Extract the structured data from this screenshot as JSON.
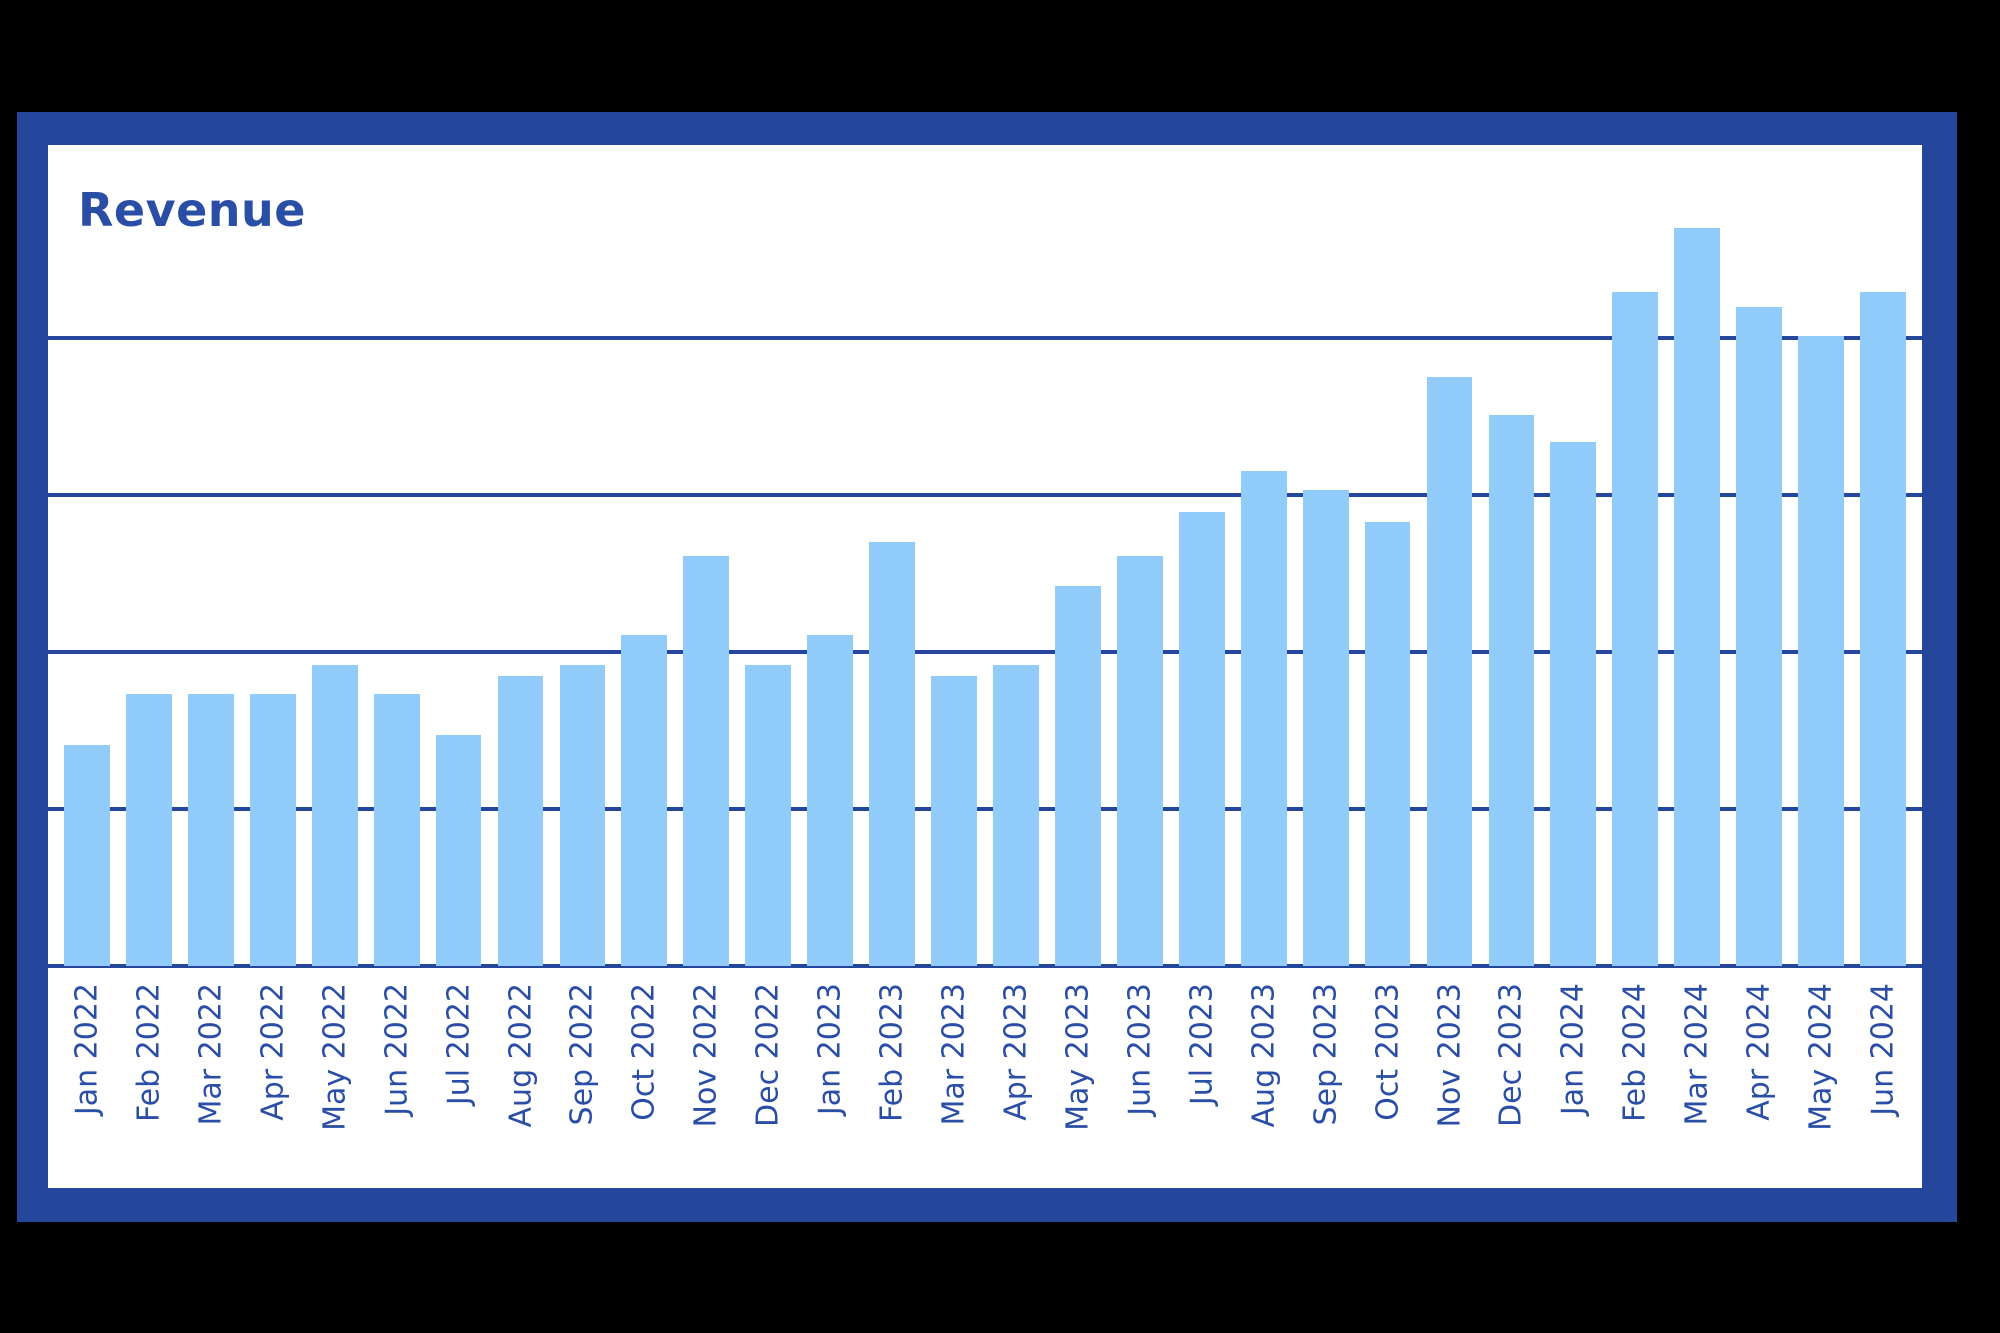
{
  "chart_data": {
    "type": "bar",
    "title": "Revenue",
    "xlabel": "",
    "ylabel": "",
    "y_tick_labels_visible": false,
    "grid": true,
    "gridline_count_above_baseline": 4,
    "ylim": [
      0,
      5
    ],
    "units_note": "relative units; each gridline step = 1",
    "colors": {
      "bar": "#90cbf9",
      "frame": "#24479b",
      "title": "#2a4ea6",
      "grid": "#24479b"
    },
    "categories": [
      "Jan 2022",
      "Feb 2022",
      "Mar 2022",
      "Apr 2022",
      "May 2022",
      "Jun 2022",
      "Jul 2022",
      "Aug 2022",
      "Sep 2022",
      "Oct 2022",
      "Nov 2022",
      "Dec 2022",
      "Jan 2023",
      "Feb 2023",
      "Mar 2023",
      "Apr 2023",
      "May 2023",
      "Jun 2023",
      "Jul 2023",
      "Aug 2023",
      "Sep 2023",
      "Oct 2023",
      "Nov 2023",
      "Dec 2023",
      "Jan 2024",
      "Feb 2024",
      "Mar 2024",
      "Apr 2024",
      "May 2024",
      "Jun 2024"
    ],
    "values": [
      1.41,
      1.73,
      1.73,
      1.73,
      1.92,
      1.73,
      1.47,
      1.85,
      1.92,
      2.11,
      2.61,
      1.92,
      2.11,
      2.7,
      1.85,
      1.92,
      2.42,
      2.61,
      2.89,
      3.15,
      3.03,
      2.83,
      3.75,
      3.51,
      3.34,
      4.29,
      4.7,
      4.2,
      4.01,
      4.29
    ]
  }
}
